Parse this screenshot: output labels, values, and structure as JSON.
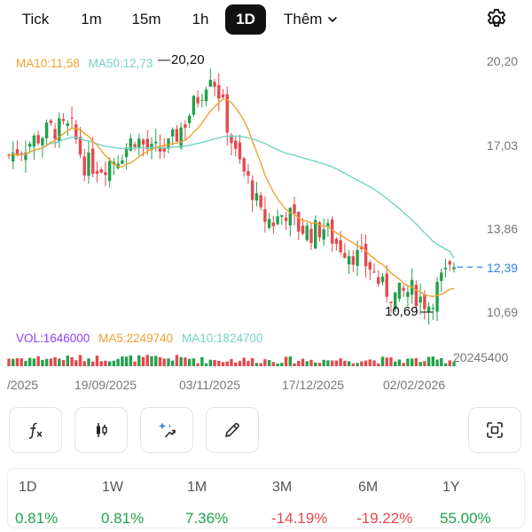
{
  "tabs": [
    {
      "label": "Tick",
      "active": false
    },
    {
      "label": "1m",
      "active": false
    },
    {
      "label": "15m",
      "active": false
    },
    {
      "label": "1h",
      "active": false
    },
    {
      "label": "1D",
      "active": true
    }
  ],
  "more_tab": {
    "label": "Thêm",
    "icon": "chevron-down-icon"
  },
  "settings_icon": "gear-icon",
  "legend_ma": {
    "ma10": "MA10:11,58",
    "ma50": "MA50:12,73"
  },
  "legend_vol": {
    "vol": "VOL:1646000",
    "ma5": "MA5:2249740",
    "ma10": "MA10:1824700"
  },
  "markers": {
    "high": "20,20",
    "low": "10,69"
  },
  "price_axis": [
    "20,20",
    "17,03",
    "13,86",
    "10,69"
  ],
  "current_price": "12,39",
  "volume_axis_label": "20245400",
  "date_axis": [
    "/2025",
    "19/09/2025",
    "03/11/2025",
    "17/12/2025",
    "02/02/2026"
  ],
  "tools": [
    {
      "name": "indicator-button",
      "icon": "function-icon"
    },
    {
      "name": "chart-type-button",
      "icon": "candlestick-icon"
    },
    {
      "name": "magic-button",
      "icon": "sparkle-icon"
    },
    {
      "name": "draw-button",
      "icon": "pencil-icon"
    },
    {
      "name": "screenshot-button",
      "icon": "scan-icon"
    }
  ],
  "performance": {
    "labels": [
      "1D",
      "1W",
      "1M",
      "3M",
      "6M",
      "1Y"
    ],
    "values": [
      "0.81%",
      "0.81%",
      "7.36%",
      "-14.19%",
      "-19.22%",
      "55.00%"
    ]
  },
  "colors": {
    "up": "#22a04b",
    "down": "#e5484d",
    "ma10": "#f0a030",
    "ma50": "#6fd4c4",
    "current_price": "#2f80ed",
    "vol_label": "#8a3ffc"
  },
  "chart_data": {
    "type": "candlestick",
    "anchors": [
      {
        "date": "19/09/2025",
        "price": 18.2
      },
      {
        "date": "03/11/2025",
        "price": 16.6
      },
      {
        "date": "17/12/2025",
        "price": 13.1
      },
      {
        "date": "02/02/2026",
        "price": 11.0
      }
    ],
    "y_ticks": [
      20.2,
      17.03,
      13.86,
      10.69
    ],
    "period_high": 20.2,
    "period_low": 10.69,
    "last_close": 12.39,
    "ma10_last": 11.58,
    "ma50_last": 12.73,
    "last_volume": 1646000,
    "vol_ma5": 2249740,
    "vol_ma10": 1824700,
    "volume_axis_max": 20245400
  }
}
